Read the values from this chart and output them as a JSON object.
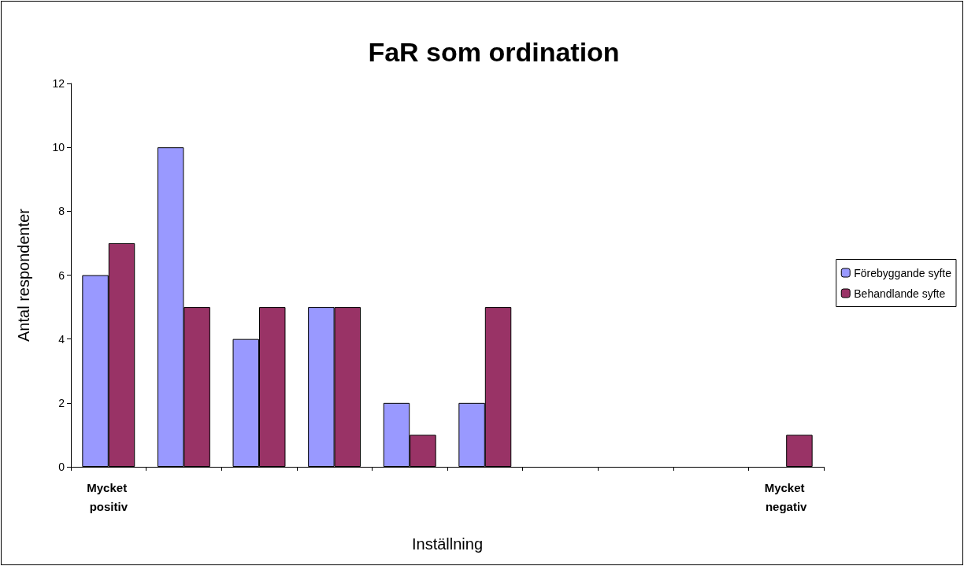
{
  "chart_data": {
    "type": "bar",
    "title": "FaR som ordination",
    "xlabel": "Inställning",
    "ylabel": "Antal respondenter",
    "categories": [
      "Mycket positiv",
      null,
      null,
      null,
      null,
      null,
      null,
      null,
      null,
      "Mycket negativ"
    ],
    "series": [
      {
        "name": "Förebyggande syfte",
        "color": "#9999ff",
        "values": [
          6,
          10,
          4,
          5,
          2,
          2,
          0,
          0,
          0,
          0
        ]
      },
      {
        "name": "Behandlande syfte",
        "color": "#993366",
        "values": [
          7,
          5,
          5,
          5,
          1,
          5,
          0,
          0,
          0,
          1
        ]
      }
    ],
    "ylim": [
      0,
      12
    ],
    "yticks": [
      0,
      2,
      4,
      6,
      8,
      10,
      12
    ],
    "grid": false,
    "legend": "right"
  }
}
